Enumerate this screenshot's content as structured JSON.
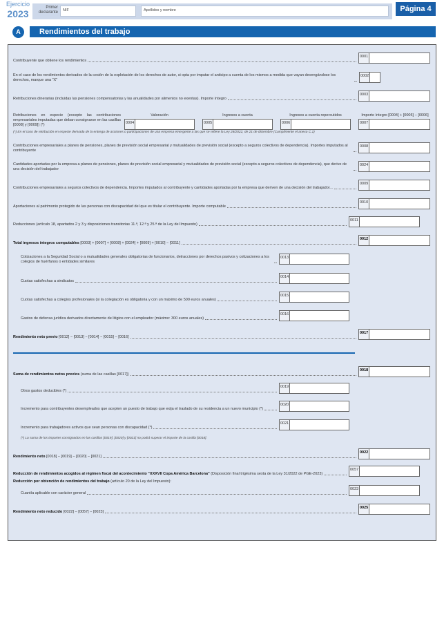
{
  "header": {
    "ejercicio_label": "Ejercicio",
    "year": "2023",
    "declarante_label": "Primer declarante",
    "nif_label": "NIF",
    "nombre_label": "Apellidos y nombre",
    "page": "Página 4"
  },
  "section": {
    "letter": "A",
    "title": "Rendimientos del trabajo"
  },
  "rows": {
    "r0001": {
      "code": "0001",
      "label": "Contribuyente que obtiene los rendimientos"
    },
    "r0002": {
      "code": "0002",
      "label": "En el caso de los rendimientos derivados de la cesión de la explotación de los derechos de autor, si opta por imputar el anticipo a cuenta de los mismos a medida que vayan devengándose los derechos, marque una \"X\""
    },
    "r0003": {
      "code": "0003",
      "label": "Retribuciones dinerarias (incluidas las pensiones compensatorias y las anualidades por alimentos no exentas). Importe íntegro"
    },
    "especie": {
      "label": "Retribuciones en especie (excepto las contribuciones empresariales imputadas que deban consignarse en las casillas [0008] y [0009]) (*)",
      "col_valoracion": "Valoración",
      "col_ingresos": "Ingresos a cuenta",
      "col_repercutidos": "Ingresos a cuenta repercutidos",
      "col_integro": "Importe íntegro [0004] + [0005] − [0006]",
      "code4": "0004",
      "code5": "0005",
      "code6": "0006",
      "code7": "0007",
      "note": "(*) En el caso de retribución en especie derivada de la entrega de acciones o participaciones de una empresa emergente a las que se refiere la Ley 28/2022, de 21 de diciembre (Cumplimente el anexo C.1)"
    },
    "r0008": {
      "code": "0008",
      "label": "Contribuciones empresariales a planes de pensiones, planes de previsión social empresarial y mutualidades de previsión social (excepto a seguros colectivos de dependencia). Importes imputados al contribuyente"
    },
    "r0024": {
      "code": "0024",
      "label": "Cantidades aportadas por la empresa a planes de pensiones, planes de previsión social empresarial y mutualidades de previsión social (excepto a seguros colectivos de dependencia), que derive de una decisión del trabajador"
    },
    "r0009": {
      "code": "0009",
      "label": "Contribuciones empresariales a seguros colectivos de dependencia. Importes imputados al contribuyente y cantidades aportadas por la empresa que deriven de una decisión del trabajador..."
    },
    "r0010": {
      "code": "0010",
      "label": "Aportaciones al patrimonio protegido de las personas con discapacidad del que es titular el contribuyente. Importe computable"
    },
    "r0011": {
      "code": "0011",
      "label": "Reducciones (artículo 18, apartados 2 y 3 y disposiciones transitorias 11.ª, 12.ª y 25.ª de la Ley del Impuesto)"
    },
    "r0012": {
      "code": "0012",
      "bold": "Total ingresos íntegros computables",
      "label": " [0003] + [0007] + [0008] + [0024] + [0009] + [0010] − [0011]"
    },
    "r0013": {
      "code": "0013",
      "label": "Cotizaciones a la Seguridad Social o a mutualidades generales obligatorias de funcionarios, detracciones por derechos pasivos y cotizaciones a los colegios de huérfanos o entidades similares"
    },
    "r0014": {
      "code": "0014",
      "label": "Cuotas satisfechas a sindicatos"
    },
    "r0015": {
      "code": "0015",
      "label": "Cuotas satisfechas a colegios profesionales (si la colegiación es obligatoria y con un máximo de 500 euros anuales)"
    },
    "r0016": {
      "code": "0016",
      "label": "Gastos de defensa jurídica derivados directamente de litigios con el empleador (máximo: 300 euros anuales)"
    },
    "r0017": {
      "code": "0017",
      "bold": "Rendimiento neto previo",
      "label": " [0012] − [0013] − [0014] − [0015] − [0016]"
    },
    "r0018": {
      "code": "0018",
      "bold": "Suma de rendimientos netos previos",
      "label": " (suma de las casillas [0017])"
    },
    "r0019": {
      "code": "0019",
      "label": "Otros gastos deducibles (*)"
    },
    "r0020": {
      "code": "0020",
      "label": "Incremento para contribuyentes desempleados que acepten un puesto de trabajo que exija el traslado de su residencia a un nuevo municipio (*)"
    },
    "r0021": {
      "code": "0021",
      "label": "Incremento para trabajadores activos que sean personas con discapacidad (*)"
    },
    "note2": "(*)   La suma de los importes consignados en las casillas [0019], [0020] y [0021] no podrá superar el importe de la casilla [0018].",
    "r0022": {
      "code": "0022",
      "bold": "Rendimiento neto",
      "label": " [0018] − [0019] − [0020] − [0021]"
    },
    "r0057": {
      "code": "0057",
      "bold": "Reducción de rendimientos acogidos al régimen fiscal del acontecimiento \"XXXVII Copa América Barcelona\"",
      "label": " (Disposición final trigésima sexta de la Ley 31/2022 de PGE-2023)"
    },
    "reduccion": {
      "bold": "Reducción por obtención de rendimientos del trabajo",
      "label": " (artículo 20 de la Ley del Impuesto):"
    },
    "r0023": {
      "code": "0023",
      "label": "Cuantía aplicable con carácter general"
    },
    "r0025": {
      "code": "0025",
      "bold": "Rendimiento neto reducido",
      "label": " [0022] − [0057] − [0023]"
    }
  }
}
